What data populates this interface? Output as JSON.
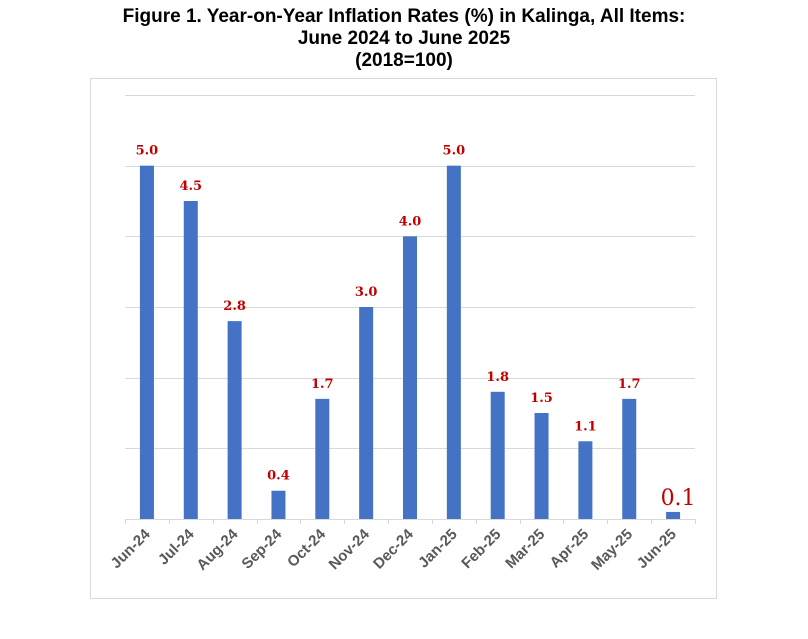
{
  "chart_data": {
    "type": "bar",
    "title_lines": [
      "Figure 1. Year-on-Year Inflation Rates (%) in Kalinga, All Items:",
      "June 2024 to June 2025",
      "(2018=100)"
    ],
    "categories": [
      "Jun-24",
      "Jul-24",
      "Aug-24",
      "Sep-24",
      "Oct-24",
      "Nov-24",
      "Dec-24",
      "Jan-25",
      "Feb-25",
      "Mar-25",
      "Apr-25",
      "May-25",
      "Jun-25"
    ],
    "values": [
      5.0,
      4.5,
      2.8,
      0.4,
      1.7,
      3.0,
      4.0,
      5.0,
      1.8,
      1.5,
      1.1,
      1.7,
      0.1
    ],
    "data_labels": [
      "5.0",
      "4.5",
      "2.8",
      "0.4",
      "1.7",
      "3.0",
      "4.0",
      "5.0",
      "1.8",
      "1.5",
      "1.1",
      "1.7",
      "0.1"
    ],
    "xlabel": "",
    "ylabel": "",
    "ylim": [
      0,
      6
    ],
    "grid": true,
    "bar_color": "#4472c4",
    "label_color": "#c00000",
    "tick_color": "#595959"
  }
}
